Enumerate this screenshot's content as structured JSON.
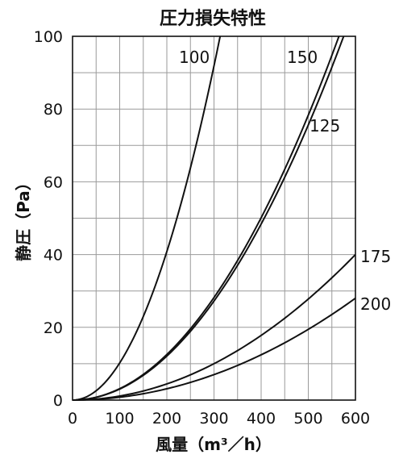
{
  "chart_data": {
    "type": "line",
    "title": "圧力損失特性",
    "xlabel": "風量（m³／h）",
    "ylabel": "静圧（Pa）",
    "xlim": [
      0,
      600
    ],
    "ylim": [
      0,
      100
    ],
    "x_ticks": [
      0,
      100,
      200,
      300,
      400,
      500,
      600
    ],
    "y_ticks": [
      0,
      20,
      40,
      60,
      80,
      100
    ],
    "grid": true,
    "grid_x_step": 50,
    "grid_y_step": 10,
    "series": [
      {
        "name": "100",
        "x": [
          0,
          50,
          100,
          150,
          200,
          250,
          300,
          313
        ],
        "y": [
          0,
          2.5,
          10,
          22.5,
          40,
          62.5,
          90,
          100
        ]
      },
      {
        "name": "150",
        "x": [
          0,
          100,
          200,
          300,
          400,
          500,
          565
        ],
        "y": [
          0,
          3.2,
          12.8,
          28.8,
          51.2,
          80,
          100
        ]
      },
      {
        "name": "125",
        "x": [
          0,
          100,
          200,
          300,
          400,
          500,
          575
        ],
        "y": [
          0,
          3.0,
          12.2,
          27.4,
          48.6,
          76,
          100
        ]
      },
      {
        "name": "175",
        "x": [
          0,
          100,
          200,
          300,
          400,
          500,
          600
        ],
        "y": [
          0,
          1.1,
          4.4,
          10,
          17.8,
          27.8,
          40
        ]
      },
      {
        "name": "200",
        "x": [
          0,
          100,
          200,
          300,
          400,
          500,
          600
        ],
        "y": [
          0,
          0.8,
          3.1,
          7,
          12.4,
          19.4,
          28
        ]
      }
    ]
  }
}
